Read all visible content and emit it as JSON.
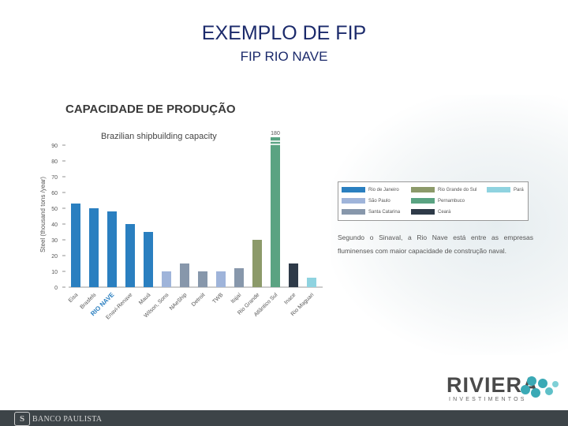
{
  "header": {
    "title": "EXEMPLO DE FIP",
    "subtitle": "FIP RIO NAVE"
  },
  "section_title": "CAPACIDADE DE PRODUÇÃO",
  "chart_data": {
    "type": "bar",
    "title": "Brazilian shipbuilding capacity",
    "ylabel": "Steel (thousand tons /year)",
    "xlabel": "",
    "ylim": [
      0,
      95
    ],
    "yticks": [
      0,
      10,
      20,
      30,
      40,
      50,
      60,
      70,
      80,
      90
    ],
    "grid": false,
    "categories": [
      "Eisa",
      "Brasfels",
      "Rio Nave",
      "Enavi-Renave",
      "Mauá",
      "Wilson, Sons",
      "NAeShip",
      "Detroit",
      "TWB",
      "Itajaí",
      "Rio Grande",
      "Atlântico Sul",
      "Inace",
      "Rio Maguari"
    ],
    "values": [
      53,
      50,
      48,
      40,
      35,
      10,
      15,
      10,
      10,
      12,
      30,
      180,
      15,
      6
    ],
    "regions": [
      "Rio de Janeiro",
      "Rio de Janeiro",
      "Rio de Janeiro",
      "Rio de Janeiro",
      "Rio de Janeiro",
      "São Paulo",
      "Santa Catarina",
      "Santa Catarina",
      "São Paulo",
      "Santa Catarina",
      "Rio Grande do Sul",
      "Pernambuco",
      "Ceará",
      "Pará"
    ],
    "highlight_category": "Rio Nave",
    "highlight_label": "RIO NAVE",
    "axis_break": {
      "category": "Atlântico Sul",
      "label": "180"
    },
    "legend": [
      {
        "name": "Rio de Janeiro",
        "color": "#2a7fc0"
      },
      {
        "name": "Rio Grande do Sul",
        "color": "#8c9a6a"
      },
      {
        "name": "Pará",
        "color": "#8fd3e0"
      },
      {
        "name": "São Paulo",
        "color": "#9fb4da"
      },
      {
        "name": "Pernambuco",
        "color": "#5aa382"
      },
      {
        "name": "Santa Catarina",
        "color": "#8797ab"
      },
      {
        "name": "Ceará",
        "color": "#2e3a48"
      }
    ]
  },
  "note": "Segundo o Sinaval, a Rio Nave está entre as empresas fluminenses com maior capacidade de construção naval.",
  "logo": {
    "name": "RIVIERA",
    "tagline": "INVESTIMENTOS",
    "accent_color": "#3aa9b5"
  },
  "footer": {
    "bank_name": "BANCO PAULISTA",
    "emblem": "S"
  }
}
